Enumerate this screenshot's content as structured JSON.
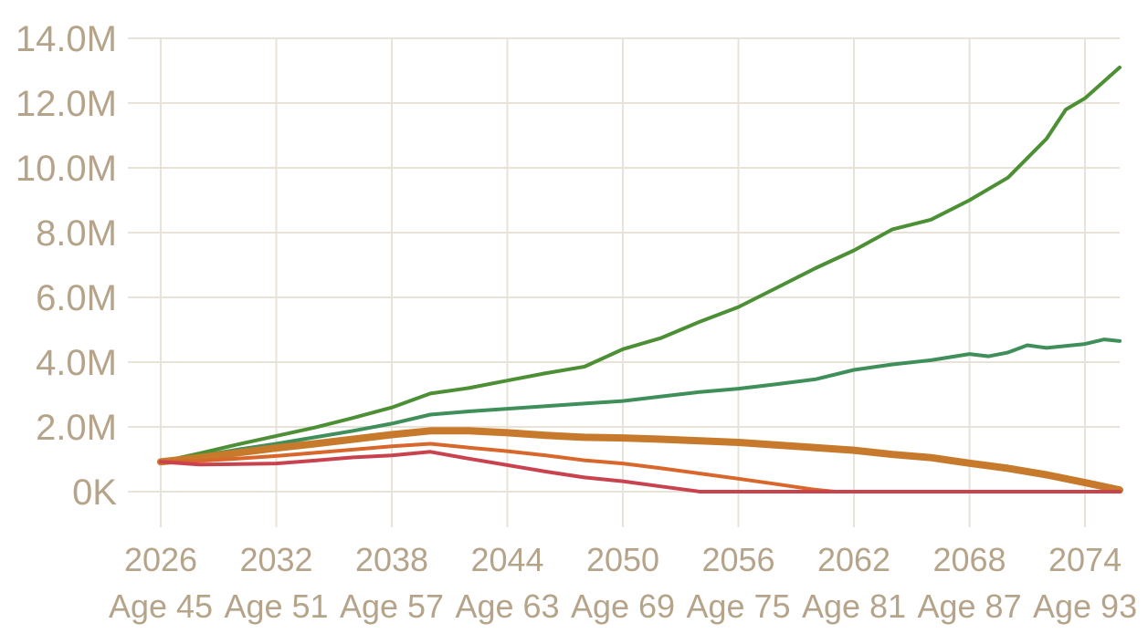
{
  "chart_data": {
    "type": "line",
    "title": "",
    "xlabel": "",
    "ylabel": "",
    "xlim": [
      2026,
      2075.8
    ],
    "ylim": [
      0,
      14000000
    ],
    "grid": true,
    "y_ticks": [
      {
        "value": 0,
        "label": "0K"
      },
      {
        "value": 2000000,
        "label": "2.0M"
      },
      {
        "value": 4000000,
        "label": "4.0M"
      },
      {
        "value": 6000000,
        "label": "6.0M"
      },
      {
        "value": 8000000,
        "label": "8.0M"
      },
      {
        "value": 10000000,
        "label": "10.0M"
      },
      {
        "value": 12000000,
        "label": "12.0M"
      },
      {
        "value": 14000000,
        "label": "14.0M"
      }
    ],
    "x_ticks": [
      {
        "value": 2026,
        "year": "2026",
        "age": "Age 45"
      },
      {
        "value": 2032,
        "year": "2032",
        "age": "Age 51"
      },
      {
        "value": 2038,
        "year": "2038",
        "age": "Age 57"
      },
      {
        "value": 2044,
        "year": "2044",
        "age": "Age 63"
      },
      {
        "value": 2050,
        "year": "2050",
        "age": "Age 69"
      },
      {
        "value": 2056,
        "year": "2056",
        "age": "Age 75"
      },
      {
        "value": 2062,
        "year": "2062",
        "age": "Age 81"
      },
      {
        "value": 2068,
        "year": "2068",
        "age": "Age 87"
      },
      {
        "value": 2074,
        "year": "2074",
        "age": "Age 93"
      }
    ],
    "series": [
      {
        "color": "#4c8f35",
        "width": 4,
        "points": [
          [
            2026,
            920000
          ],
          [
            2028,
            1180000
          ],
          [
            2030,
            1460000
          ],
          [
            2032,
            1720000
          ],
          [
            2034,
            1980000
          ],
          [
            2036,
            2280000
          ],
          [
            2038,
            2600000
          ],
          [
            2040,
            3030000
          ],
          [
            2042,
            3200000
          ],
          [
            2044,
            3430000
          ],
          [
            2046,
            3660000
          ],
          [
            2048,
            3860000
          ],
          [
            2050,
            4400000
          ],
          [
            2052,
            4750000
          ],
          [
            2054,
            5250000
          ],
          [
            2056,
            5700000
          ],
          [
            2058,
            6300000
          ],
          [
            2060,
            6900000
          ],
          [
            2062,
            7450000
          ],
          [
            2064,
            8100000
          ],
          [
            2066,
            8400000
          ],
          [
            2068,
            9000000
          ],
          [
            2070,
            9700000
          ],
          [
            2072,
            10900000
          ],
          [
            2073,
            11800000
          ],
          [
            2074,
            12150000
          ],
          [
            2075.8,
            13100000
          ]
        ]
      },
      {
        "color": "#3e8f5a",
        "width": 4,
        "points": [
          [
            2026,
            920000
          ],
          [
            2028,
            1100000
          ],
          [
            2030,
            1300000
          ],
          [
            2032,
            1480000
          ],
          [
            2034,
            1680000
          ],
          [
            2036,
            1880000
          ],
          [
            2038,
            2100000
          ],
          [
            2040,
            2380000
          ],
          [
            2042,
            2480000
          ],
          [
            2044,
            2560000
          ],
          [
            2046,
            2640000
          ],
          [
            2048,
            2720000
          ],
          [
            2050,
            2800000
          ],
          [
            2052,
            2940000
          ],
          [
            2054,
            3080000
          ],
          [
            2056,
            3180000
          ],
          [
            2058,
            3320000
          ],
          [
            2060,
            3470000
          ],
          [
            2062,
            3760000
          ],
          [
            2064,
            3930000
          ],
          [
            2066,
            4060000
          ],
          [
            2068,
            4250000
          ],
          [
            2069,
            4180000
          ],
          [
            2070,
            4300000
          ],
          [
            2071,
            4520000
          ],
          [
            2072,
            4440000
          ],
          [
            2074,
            4560000
          ],
          [
            2075,
            4700000
          ],
          [
            2075.8,
            4650000
          ]
        ]
      },
      {
        "color": "#c77a2b",
        "width": 8,
        "points": [
          [
            2026,
            920000
          ],
          [
            2028,
            1050000
          ],
          [
            2030,
            1200000
          ],
          [
            2032,
            1350000
          ],
          [
            2034,
            1480000
          ],
          [
            2036,
            1620000
          ],
          [
            2038,
            1760000
          ],
          [
            2040,
            1880000
          ],
          [
            2042,
            1880000
          ],
          [
            2044,
            1820000
          ],
          [
            2046,
            1740000
          ],
          [
            2048,
            1680000
          ],
          [
            2050,
            1660000
          ],
          [
            2052,
            1620000
          ],
          [
            2054,
            1570000
          ],
          [
            2056,
            1520000
          ],
          [
            2058,
            1440000
          ],
          [
            2060,
            1360000
          ],
          [
            2062,
            1280000
          ],
          [
            2064,
            1150000
          ],
          [
            2066,
            1050000
          ],
          [
            2068,
            880000
          ],
          [
            2070,
            720000
          ],
          [
            2072,
            520000
          ],
          [
            2074,
            280000
          ],
          [
            2075.8,
            50000
          ]
        ]
      },
      {
        "color": "#d9662a",
        "width": 4,
        "points": [
          [
            2026,
            920000
          ],
          [
            2028,
            950000
          ],
          [
            2030,
            1020000
          ],
          [
            2032,
            1100000
          ],
          [
            2034,
            1200000
          ],
          [
            2036,
            1300000
          ],
          [
            2038,
            1400000
          ],
          [
            2040,
            1480000
          ],
          [
            2042,
            1360000
          ],
          [
            2044,
            1250000
          ],
          [
            2046,
            1120000
          ],
          [
            2048,
            970000
          ],
          [
            2050,
            870000
          ],
          [
            2052,
            720000
          ],
          [
            2054,
            560000
          ],
          [
            2056,
            400000
          ],
          [
            2058,
            230000
          ],
          [
            2060,
            60000
          ],
          [
            2061,
            0
          ],
          [
            2075.8,
            0
          ]
        ]
      },
      {
        "color": "#c9434f",
        "width": 4,
        "points": [
          [
            2026,
            920000
          ],
          [
            2028,
            840000
          ],
          [
            2030,
            850000
          ],
          [
            2032,
            870000
          ],
          [
            2034,
            960000
          ],
          [
            2036,
            1060000
          ],
          [
            2038,
            1120000
          ],
          [
            2040,
            1230000
          ],
          [
            2042,
            1020000
          ],
          [
            2044,
            820000
          ],
          [
            2046,
            620000
          ],
          [
            2048,
            440000
          ],
          [
            2050,
            320000
          ],
          [
            2052,
            160000
          ],
          [
            2054,
            0
          ],
          [
            2075.8,
            0
          ]
        ]
      }
    ]
  }
}
